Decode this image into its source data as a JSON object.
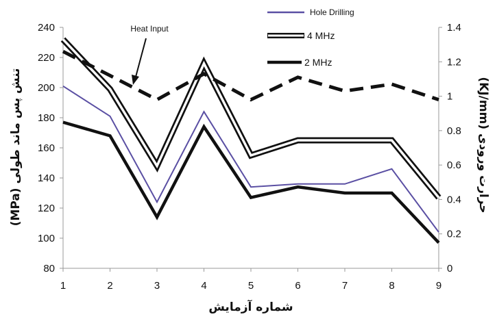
{
  "chart_data": {
    "type": "line",
    "x": [
      1,
      2,
      3,
      4,
      5,
      6,
      7,
      8,
      9
    ],
    "xlabel": "شماره آزمایش",
    "ylabel_left": "تنش پس ماند طولی (MPa)",
    "ylabel_right": "حرارت ورودی (KJ/mm)",
    "xlim": [
      1,
      9
    ],
    "ylim_left": [
      80,
      240
    ],
    "ylim_right": [
      0,
      1.4
    ],
    "yticks_left": [
      80,
      100,
      120,
      140,
      160,
      180,
      200,
      220,
      240
    ],
    "yticks_right": [
      "0",
      "0.2",
      "0.4",
      "0.6",
      "0.8",
      "1",
      "1.2",
      "1.4"
    ],
    "xticks": [
      "1",
      "2",
      "3",
      "4",
      "5",
      "6",
      "7",
      "8",
      "9"
    ],
    "grid": false,
    "legend_position": "top-center",
    "series": [
      {
        "name": "Hole Drilling",
        "axis": "left",
        "style": "thin-purple",
        "color": "#5a4fa3",
        "values": [
          201,
          181,
          124,
          184,
          134,
          136,
          136,
          146,
          104
        ]
      },
      {
        "name": "4 MHz",
        "axis": "left",
        "style": "double-outline",
        "color": "#111111",
        "values": [
          232,
          199,
          148,
          216,
          155,
          165,
          165,
          165,
          127
        ]
      },
      {
        "name": "2 MHz",
        "axis": "left",
        "style": "thick-black",
        "color": "#111111",
        "values": [
          177,
          168,
          114,
          174,
          127,
          134,
          130,
          130,
          97
        ]
      },
      {
        "axis": "right",
        "style": "dashed-black",
        "color": "#111111",
        "values": [
          1.26,
          1.12,
          0.98,
          1.13,
          0.98,
          1.11,
          1.03,
          1.07,
          0.98
        ]
      }
    ],
    "annotations": [
      {
        "text": "Heat Input"
      }
    ]
  }
}
